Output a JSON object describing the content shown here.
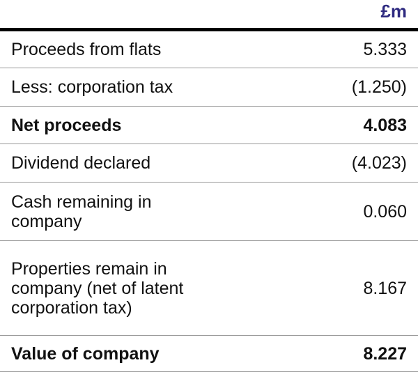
{
  "table": {
    "header": "£m",
    "rows": [
      [
        "Proceeds from flats",
        "5.333"
      ],
      [
        "Less: corporation tax",
        "(1.250)"
      ],
      [
        "Net proceeds",
        "4.083"
      ],
      [
        "Dividend declared",
        "(4.023)"
      ],
      [
        "Cash remaining in company",
        "0.060"
      ],
      [
        "Properties remain in company (net of latent corporation tax)",
        "8.167"
      ],
      [
        "Value of company",
        "8.227"
      ]
    ],
    "bold_rows": [
      2,
      6
    ]
  }
}
